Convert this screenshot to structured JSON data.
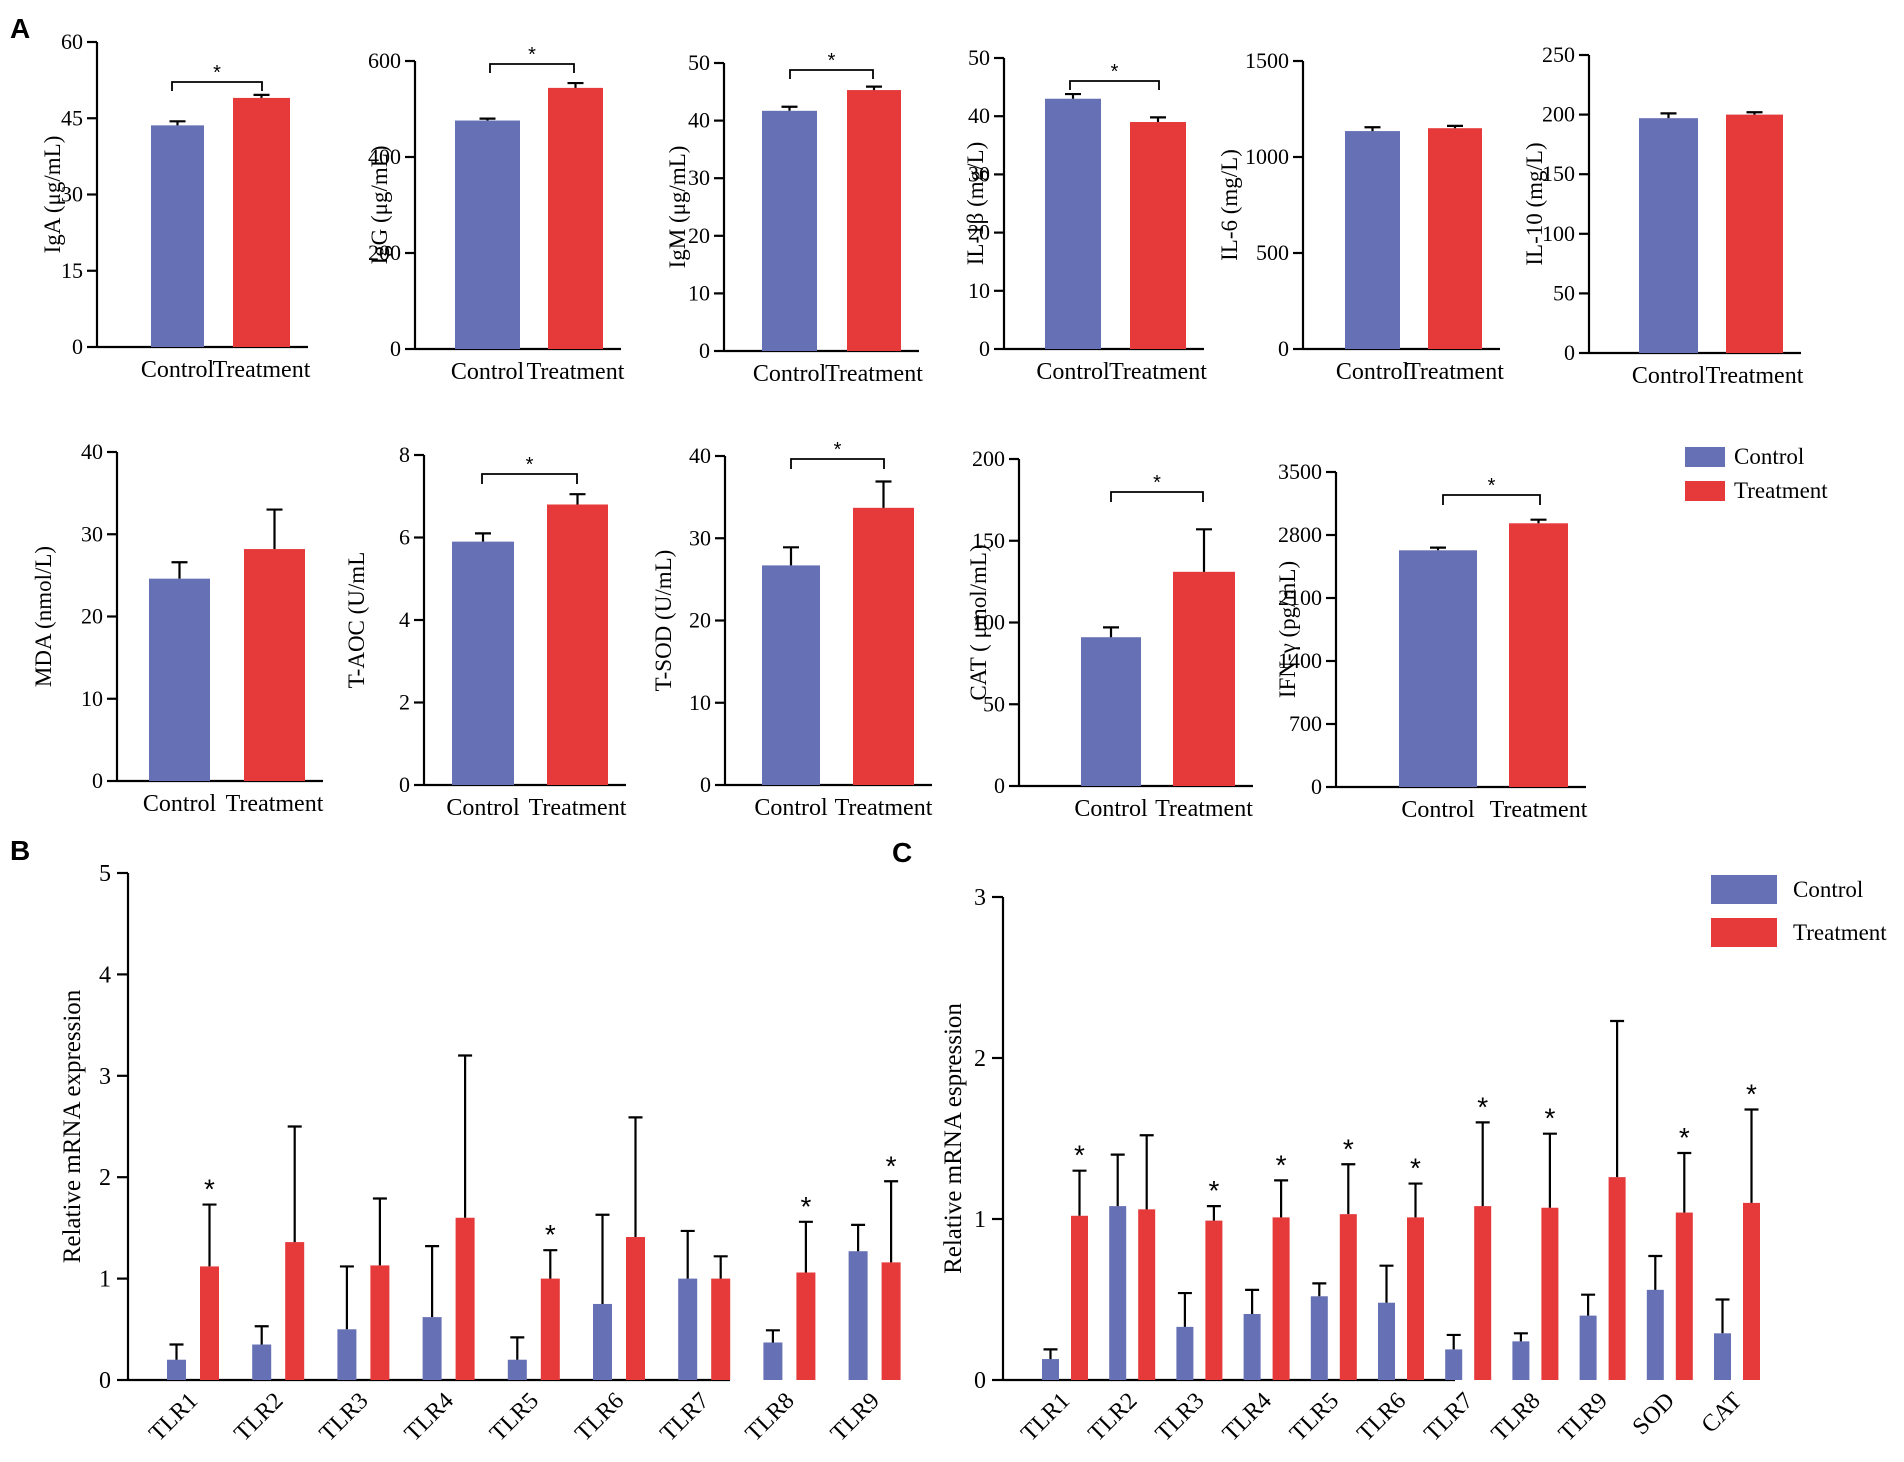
{
  "colors": {
    "control": "#6670B5",
    "treatment": "#E5393A"
  },
  "panel_labels": [
    "A",
    "B",
    "C"
  ],
  "legend": {
    "control": "Control",
    "treatment": "Treatment"
  },
  "chart_data": [
    {
      "id": "iga",
      "type": "bar",
      "ylabel": "IgA (μg/mL)",
      "categories": [
        "Control",
        "Treatment"
      ],
      "values": [
        43.6,
        49.0
      ],
      "errors": [
        0.8,
        0.6
      ],
      "ylim": [
        0,
        60
      ],
      "yticks": [
        0,
        15,
        30,
        45,
        60
      ],
      "significant": true,
      "sig_label": "*"
    },
    {
      "id": "igg",
      "type": "bar",
      "ylabel": "IgG (μg/mL)",
      "categories": [
        "Control",
        "Treatment"
      ],
      "values": [
        476,
        544
      ],
      "errors": [
        4,
        10
      ],
      "ylim": [
        0,
        600
      ],
      "yticks": [
        0,
        200,
        400,
        600
      ],
      "significant": true,
      "sig_label": "*"
    },
    {
      "id": "igm",
      "type": "bar",
      "ylabel": "IgM (μg/mL)",
      "categories": [
        "Control",
        "Treatment"
      ],
      "values": [
        41.7,
        45.3
      ],
      "errors": [
        0.7,
        0.6
      ],
      "ylim": [
        0,
        50
      ],
      "yticks": [
        0,
        10,
        20,
        30,
        40,
        50
      ],
      "significant": true,
      "sig_label": "*"
    },
    {
      "id": "il1b",
      "type": "bar",
      "ylabel": "IL-1β (mg/L)",
      "categories": [
        "Control",
        "Treatment"
      ],
      "values": [
        43.0,
        39.0
      ],
      "errors": [
        0.8,
        0.8
      ],
      "ylim": [
        0,
        50
      ],
      "yticks": [
        0,
        10,
        20,
        30,
        40,
        50
      ],
      "significant": true,
      "sig_label": "*"
    },
    {
      "id": "il6",
      "type": "bar",
      "ylabel": "IL-6 (mg/L)",
      "categories": [
        "Control",
        "Treatment"
      ],
      "values": [
        1135,
        1150
      ],
      "errors": [
        20,
        12
      ],
      "ylim": [
        0,
        1500
      ],
      "yticks": [
        0,
        500,
        1000,
        1500
      ],
      "significant": false
    },
    {
      "id": "il10",
      "type": "bar",
      "ylabel": "IL-10 (mg/L)",
      "categories": [
        "Control",
        "Treatment"
      ],
      "values": [
        197,
        200
      ],
      "errors": [
        4,
        2
      ],
      "ylim": [
        0,
        250
      ],
      "yticks": [
        0,
        50,
        100,
        150,
        200,
        250
      ],
      "significant": false
    },
    {
      "id": "mda",
      "type": "bar",
      "ylabel": "MDA (nmol/L)",
      "categories": [
        "Control",
        "Treatment"
      ],
      "values": [
        24.6,
        28.2
      ],
      "errors": [
        2.0,
        4.8
      ],
      "ylim": [
        0,
        40
      ],
      "yticks": [
        0,
        10,
        20,
        30,
        40
      ],
      "significant": false
    },
    {
      "id": "taoc",
      "type": "bar",
      "ylabel": "T-AOC (U/mL",
      "categories": [
        "Control",
        "Treatment"
      ],
      "values": [
        5.9,
        6.8
      ],
      "errors": [
        0.2,
        0.25
      ],
      "ylim": [
        0,
        8
      ],
      "yticks": [
        0,
        2,
        4,
        6,
        8
      ],
      "significant": true,
      "sig_label": "*"
    },
    {
      "id": "tsod",
      "type": "bar",
      "ylabel": "T-SOD (U/mL)",
      "categories": [
        "Control",
        "Treatment"
      ],
      "values": [
        26.7,
        33.7
      ],
      "errors": [
        2.2,
        3.2
      ],
      "ylim": [
        0,
        40
      ],
      "yticks": [
        0,
        10,
        20,
        30,
        40
      ],
      "significant": true,
      "sig_label": "*"
    },
    {
      "id": "cat",
      "type": "bar",
      "ylabel": "CAT ( μmol/mL)",
      "categories": [
        "Control",
        "Treatment"
      ],
      "values": [
        91,
        131
      ],
      "errors": [
        6,
        26
      ],
      "ylim": [
        0,
        200
      ],
      "yticks": [
        0,
        50,
        100,
        150,
        200
      ],
      "significant": true,
      "sig_label": "*"
    },
    {
      "id": "ifng",
      "type": "bar",
      "ylabel": "IFN-γ (pg/mL)",
      "categories": [
        "Control",
        "Treatment"
      ],
      "values": [
        2630,
        2930
      ],
      "errors": [
        30,
        40
      ],
      "ylim": [
        0,
        3500
      ],
      "yticks": [
        0,
        700,
        1400,
        2100,
        2800,
        3500
      ],
      "significant": true,
      "sig_label": "*"
    },
    {
      "id": "B",
      "type": "bar",
      "ylabel": "Relative mRNA expression",
      "categories": [
        "TLR1",
        "TLR2",
        "TLR3",
        "TLR4",
        "TLR5",
        "TLR6",
        "TLR7",
        "TLR8",
        "TLR9"
      ],
      "ylim": [
        0,
        5
      ],
      "yticks": [
        0,
        1,
        2,
        3,
        4,
        5
      ],
      "series": [
        {
          "name": "Control",
          "values": [
            0.2,
            0.35,
            0.5,
            0.62,
            0.2,
            0.75,
            1.0,
            0.37,
            1.27
          ],
          "errors": [
            0.15,
            0.18,
            0.62,
            0.7,
            0.22,
            0.88,
            0.47,
            0.12,
            0.26
          ]
        },
        {
          "name": "Treatment",
          "values": [
            1.12,
            1.36,
            1.13,
            1.6,
            1.0,
            1.41,
            1.0,
            1.06,
            1.16
          ],
          "errors": [
            0.61,
            1.14,
            0.66,
            1.6,
            0.28,
            1.18,
            0.22,
            0.5,
            0.8
          ]
        }
      ],
      "sig_label": "*",
      "significant": [
        true,
        false,
        false,
        false,
        true,
        false,
        false,
        true,
        true
      ]
    },
    {
      "id": "C",
      "type": "bar",
      "ylabel": "Relative mRNA espression",
      "categories": [
        "TLR1",
        "TLR2",
        "TLR3",
        "TLR4",
        "TLR5",
        "TLR6",
        "TLR7",
        "TLR8",
        "TLR9",
        "SOD",
        "CAT"
      ],
      "ylim": [
        0,
        3
      ],
      "yticks": [
        0,
        1,
        2,
        3
      ],
      "series": [
        {
          "name": "Control",
          "values": [
            0.13,
            1.08,
            0.33,
            0.41,
            0.52,
            0.48,
            0.19,
            0.24,
            0.4,
            0.56,
            0.29
          ],
          "errors": [
            0.06,
            0.32,
            0.21,
            0.15,
            0.08,
            0.23,
            0.09,
            0.05,
            0.13,
            0.21,
            0.21
          ]
        },
        {
          "name": "Treatment",
          "values": [
            1.02,
            1.06,
            0.99,
            1.01,
            1.03,
            1.01,
            1.08,
            1.07,
            1.26,
            1.04,
            1.1
          ],
          "errors": [
            0.28,
            0.46,
            0.09,
            0.23,
            0.31,
            0.21,
            0.52,
            0.46,
            0.97,
            0.37,
            0.58
          ]
        }
      ],
      "sig_label": "*",
      "significant": [
        true,
        false,
        true,
        true,
        true,
        true,
        true,
        true,
        false,
        true,
        true
      ]
    }
  ]
}
